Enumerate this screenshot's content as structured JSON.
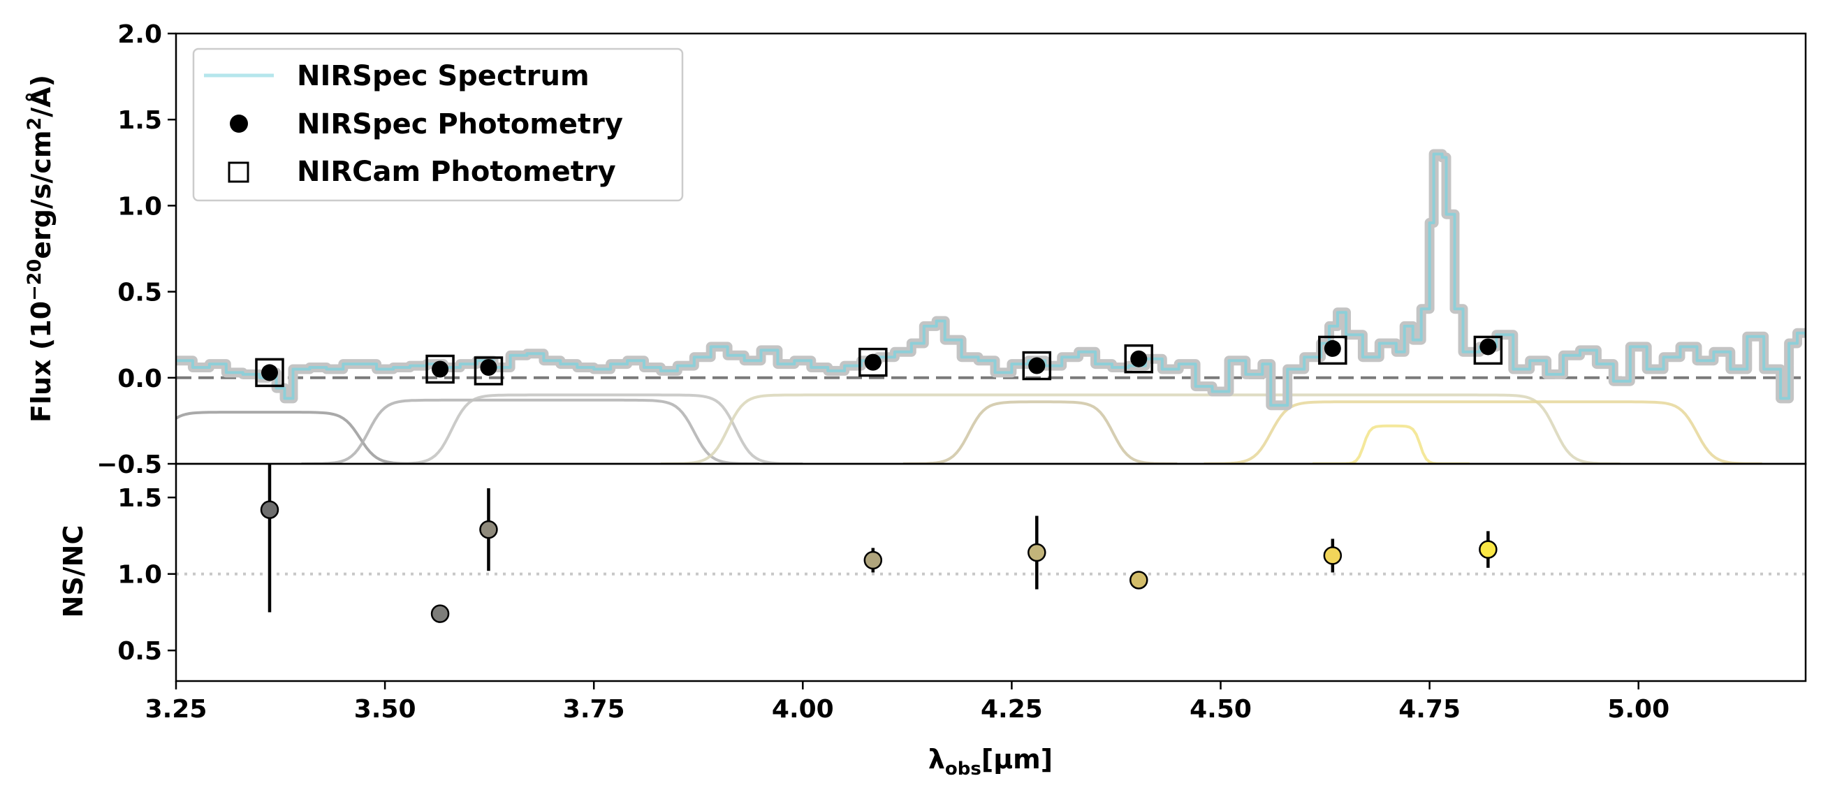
{
  "chart_data": [
    {
      "type": "line",
      "panel": "top",
      "ylabel_parts": [
        "Flux (10",
        "−20",
        "erg/s/cm",
        "2",
        "/Å)"
      ],
      "xlim": [
        3.25,
        5.2
      ],
      "ylim": [
        -0.5,
        2.0
      ],
      "yticks": [
        "−0.5",
        "0.0",
        "0.5",
        "1.0",
        "1.5",
        "2.0"
      ],
      "ytick_values": [
        -0.5,
        0.0,
        0.5,
        1.0,
        1.5,
        2.0
      ],
      "zero_line": 0.0,
      "legend": {
        "placement": "upper-left",
        "entries": [
          "NIRSpec Spectrum",
          "NIRSpec Photometry",
          "NIRCam Photometry"
        ]
      },
      "spectrum": {
        "color": "#8ecfd8",
        "points": [
          [
            3.25,
            0.1
          ],
          [
            3.27,
            0.06
          ],
          [
            3.29,
            0.08
          ],
          [
            3.31,
            0.03
          ],
          [
            3.33,
            0.02
          ],
          [
            3.35,
            0.0
          ],
          [
            3.36,
            0.03
          ],
          [
            3.37,
            -0.06
          ],
          [
            3.38,
            -0.12
          ],
          [
            3.39,
            0.05
          ],
          [
            3.41,
            0.06
          ],
          [
            3.43,
            0.05
          ],
          [
            3.45,
            0.08
          ],
          [
            3.47,
            0.08
          ],
          [
            3.49,
            0.05
          ],
          [
            3.51,
            0.06
          ],
          [
            3.53,
            0.07
          ],
          [
            3.55,
            0.08
          ],
          [
            3.57,
            0.06
          ],
          [
            3.59,
            0.08
          ],
          [
            3.61,
            0.1
          ],
          [
            3.63,
            0.06
          ],
          [
            3.65,
            0.13
          ],
          [
            3.67,
            0.14
          ],
          [
            3.69,
            0.1
          ],
          [
            3.71,
            0.08
          ],
          [
            3.73,
            0.06
          ],
          [
            3.75,
            0.05
          ],
          [
            3.77,
            0.08
          ],
          [
            3.79,
            0.1
          ],
          [
            3.81,
            0.06
          ],
          [
            3.83,
            0.04
          ],
          [
            3.85,
            0.07
          ],
          [
            3.87,
            0.12
          ],
          [
            3.89,
            0.18
          ],
          [
            3.91,
            0.13
          ],
          [
            3.93,
            0.1
          ],
          [
            3.95,
            0.16
          ],
          [
            3.97,
            0.08
          ],
          [
            3.99,
            0.1
          ],
          [
            4.01,
            0.06
          ],
          [
            4.03,
            0.04
          ],
          [
            4.05,
            0.07
          ],
          [
            4.07,
            0.1
          ],
          [
            4.09,
            0.12
          ],
          [
            4.11,
            0.15
          ],
          [
            4.13,
            0.2
          ],
          [
            4.145,
            0.3
          ],
          [
            4.16,
            0.33
          ],
          [
            4.17,
            0.22
          ],
          [
            4.19,
            0.12
          ],
          [
            4.21,
            0.1
          ],
          [
            4.23,
            0.03
          ],
          [
            4.25,
            0.08
          ],
          [
            4.27,
            0.1
          ],
          [
            4.29,
            0.07
          ],
          [
            4.31,
            0.12
          ],
          [
            4.33,
            0.15
          ],
          [
            4.35,
            0.08
          ],
          [
            4.37,
            0.06
          ],
          [
            4.39,
            0.07
          ],
          [
            4.41,
            0.11
          ],
          [
            4.43,
            0.05
          ],
          [
            4.45,
            0.08
          ],
          [
            4.47,
            -0.05
          ],
          [
            4.49,
            -0.08
          ],
          [
            4.51,
            0.1
          ],
          [
            4.53,
            0.02
          ],
          [
            4.55,
            0.08
          ],
          [
            4.56,
            -0.16
          ],
          [
            4.58,
            0.05
          ],
          [
            4.6,
            0.12
          ],
          [
            4.62,
            0.2
          ],
          [
            4.63,
            0.3
          ],
          [
            4.64,
            0.38
          ],
          [
            4.65,
            0.25
          ],
          [
            4.67,
            0.12
          ],
          [
            4.69,
            0.2
          ],
          [
            4.71,
            0.15
          ],
          [
            4.72,
            0.3
          ],
          [
            4.73,
            0.22
          ],
          [
            4.74,
            0.4
          ],
          [
            4.75,
            0.9
          ],
          [
            4.755,
            1.3
          ],
          [
            4.765,
            1.28
          ],
          [
            4.77,
            0.95
          ],
          [
            4.78,
            0.4
          ],
          [
            4.79,
            0.15
          ],
          [
            4.81,
            0.18
          ],
          [
            4.83,
            0.25
          ],
          [
            4.85,
            0.05
          ],
          [
            4.87,
            0.1
          ],
          [
            4.89,
            0.02
          ],
          [
            4.91,
            0.13
          ],
          [
            4.93,
            0.16
          ],
          [
            4.95,
            0.08
          ],
          [
            4.97,
            -0.02
          ],
          [
            4.99,
            0.18
          ],
          [
            5.01,
            0.05
          ],
          [
            5.03,
            0.12
          ],
          [
            5.05,
            0.18
          ],
          [
            5.07,
            0.1
          ],
          [
            5.09,
            0.15
          ],
          [
            5.11,
            0.05
          ],
          [
            5.13,
            0.24
          ],
          [
            5.15,
            0.05
          ],
          [
            5.17,
            -0.12
          ],
          [
            5.18,
            0.2
          ],
          [
            5.19,
            0.26
          ],
          [
            5.2,
            0.24
          ]
        ]
      },
      "nirspec_photometry": {
        "x": [
          3.362,
          3.566,
          3.624,
          4.084,
          4.28,
          4.402,
          4.634,
          4.82
        ],
        "y": [
          0.03,
          0.05,
          0.06,
          0.09,
          0.07,
          0.11,
          0.17,
          0.18
        ]
      },
      "nircam_photometry": {
        "x": [
          3.362,
          3.566,
          3.624,
          4.084,
          4.28,
          4.402,
          4.634,
          4.82
        ],
        "y": [
          0.03,
          0.05,
          0.04,
          0.09,
          0.07,
          0.11,
          0.16,
          0.16
        ]
      },
      "filters": [
        {
          "color": "#9a9a9a",
          "lo": 3.2,
          "hi": 3.5,
          "peak": 0.3
        },
        {
          "color": "#b0b0b0",
          "lo": 3.45,
          "hi": 3.9,
          "peak": 0.37
        },
        {
          "color": "#c2c2bf",
          "lo": 3.55,
          "hi": 3.95,
          "peak": 0.4
        },
        {
          "color": "#d9d6b8",
          "lo": 3.88,
          "hi": 4.93,
          "peak": 0.4
        },
        {
          "color": "#cfc6a5",
          "lo": 4.17,
          "hi": 4.4,
          "peak": 0.36
        },
        {
          "color": "#e6d79a",
          "lo": 4.53,
          "hi": 5.1,
          "peak": 0.36
        },
        {
          "color": "#f2e48a",
          "lo": 4.66,
          "hi": 4.75,
          "peak": 0.22
        }
      ]
    },
    {
      "type": "scatter",
      "panel": "bottom",
      "ylabel": "NS/NC",
      "xlabel_main": "λ",
      "xlabel_sub": "obs",
      "xlabel_rest": "[μm]",
      "xlim": [
        3.25,
        5.2
      ],
      "ylim": [
        0.3,
        1.72
      ],
      "xticks": [
        "3.25",
        "3.50",
        "3.75",
        "4.00",
        "4.25",
        "4.50",
        "4.75",
        "5.00"
      ],
      "xtick_values": [
        3.25,
        3.5,
        3.75,
        4.0,
        4.25,
        4.5,
        4.75,
        5.0
      ],
      "yticks": [
        "0.5",
        "1.0",
        "1.5"
      ],
      "ytick_values": [
        0.5,
        1.0,
        1.5
      ],
      "reference_line": 1.0,
      "points": [
        {
          "x": 3.362,
          "y": 1.42,
          "err": 0.67,
          "color": "#6e6e6e"
        },
        {
          "x": 3.566,
          "y": 0.74,
          "err": 0.0,
          "color": "#7d7d7a"
        },
        {
          "x": 3.624,
          "y": 1.29,
          "err": 0.27,
          "color": "#8f8a7c"
        },
        {
          "x": 4.084,
          "y": 1.09,
          "err": 0.08,
          "color": "#b0a57d"
        },
        {
          "x": 4.28,
          "y": 1.14,
          "err": 0.24,
          "color": "#c2b47a"
        },
        {
          "x": 4.402,
          "y": 0.96,
          "err": 0.0,
          "color": "#d3bd6a"
        },
        {
          "x": 4.634,
          "y": 1.12,
          "err": 0.11,
          "color": "#f1d55a"
        },
        {
          "x": 4.82,
          "y": 1.16,
          "err": 0.12,
          "color": "#fbe846"
        }
      ]
    }
  ]
}
